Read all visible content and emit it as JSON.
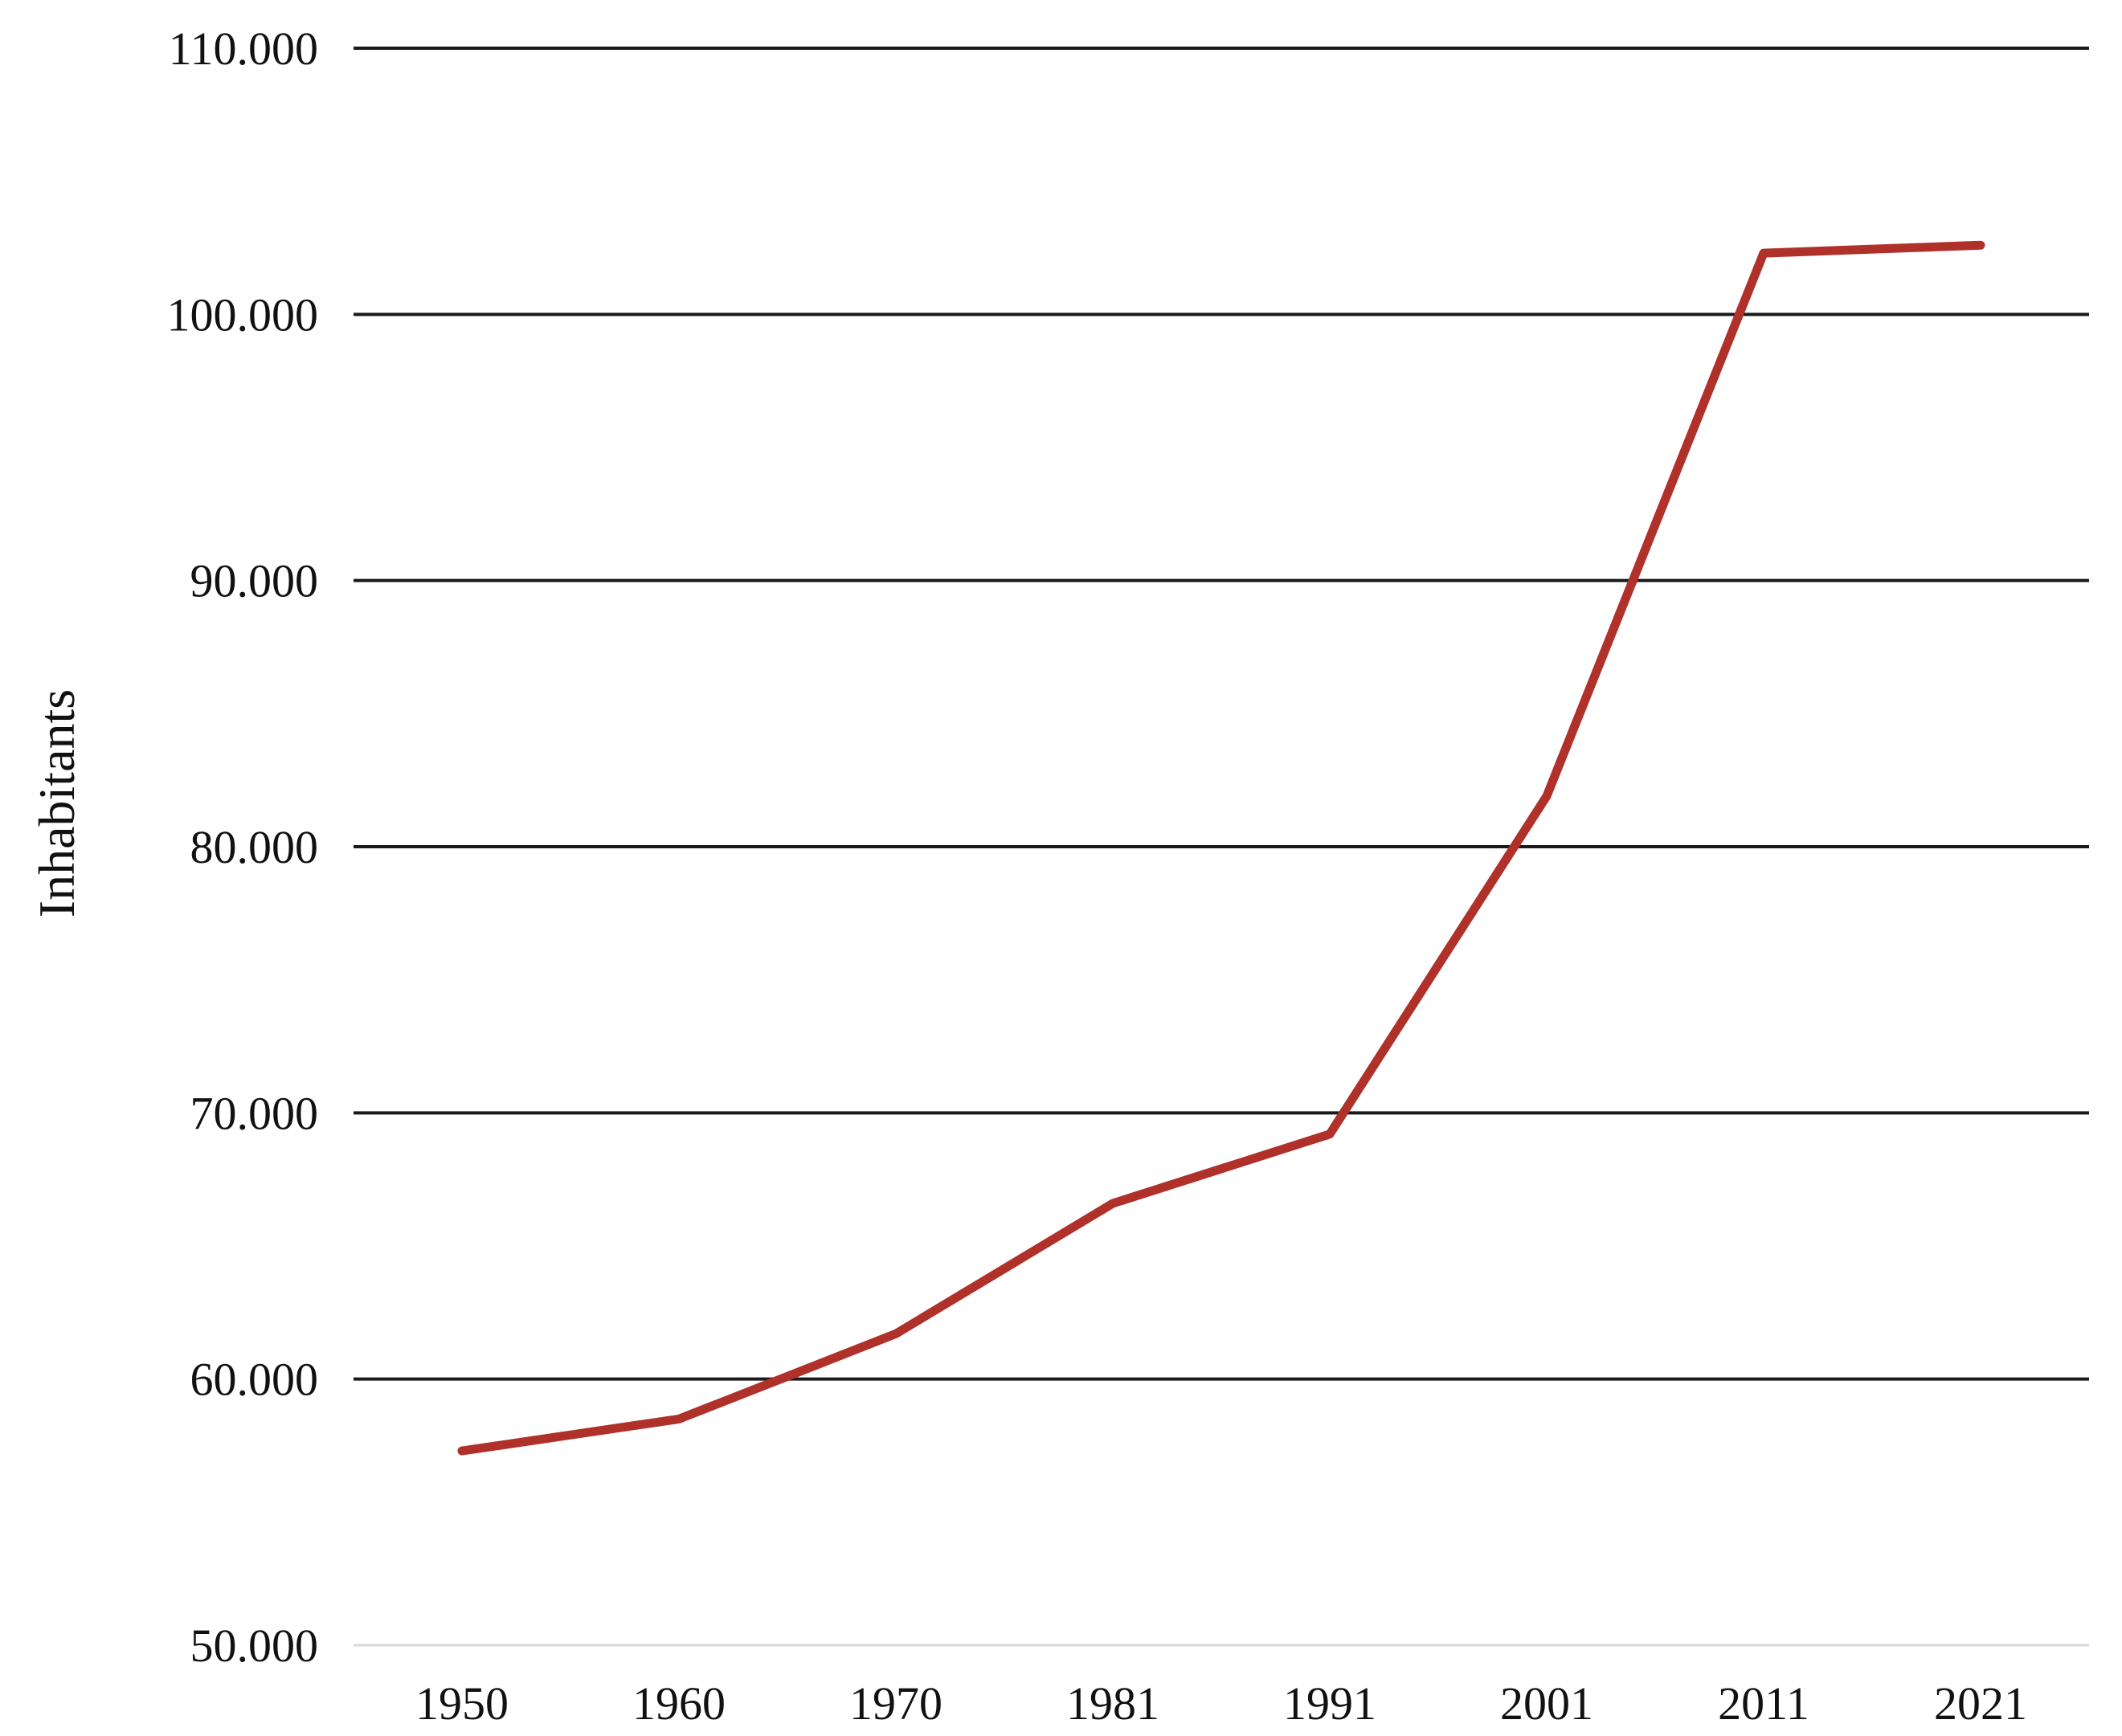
{
  "chart_data": {
    "type": "line",
    "title": "",
    "xlabel": "",
    "ylabel": "Inhabitants",
    "categories": [
      "1950",
      "1960",
      "1970",
      "1981",
      "1991",
      "2001",
      "2011",
      "2021"
    ],
    "y_ticks": [
      50000,
      60000,
      70000,
      80000,
      90000,
      100000,
      110000
    ],
    "y_tick_labels": [
      "50.000",
      "60.000",
      "70.000",
      "80.000",
      "90.000",
      "100.000",
      "110.000"
    ],
    "ylim": [
      50000,
      110000
    ],
    "grid": true,
    "legend": "none",
    "series": [
      {
        "color": "#b0302a",
        "values": [
          57300,
          58500,
          61700,
          66600,
          69200,
          81900,
          102300,
          102600
        ]
      }
    ]
  }
}
